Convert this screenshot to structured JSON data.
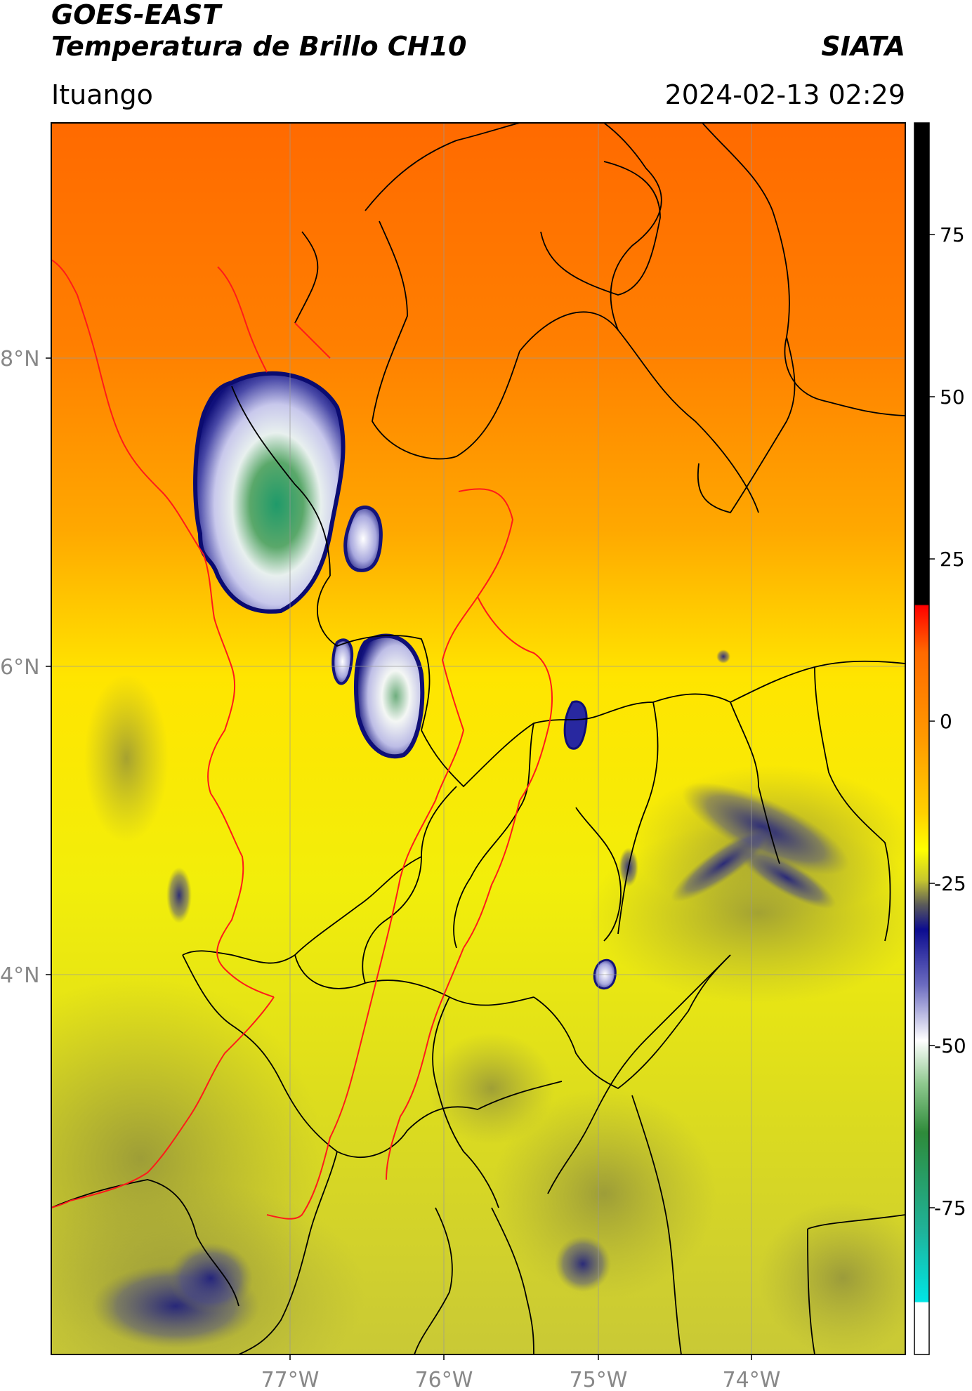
{
  "header": {
    "title_line1": "GOES-EAST",
    "title_line2": "Temperatura de Brillo CH10",
    "brand": "SIATA",
    "location": "Ituango",
    "datetime": "2024-02-13 02:29"
  },
  "map": {
    "lon_labels": [
      "77°W",
      "76°W",
      "75°W",
      "74°W"
    ],
    "lat_labels": [
      "8°N",
      "6°N",
      "4°N"
    ]
  },
  "colorbar": {
    "tick_labels": [
      "75",
      "50",
      "25",
      "0",
      "-25",
      "-50",
      "-75"
    ],
    "colors": {
      "hot": "#000000",
      "red": "#ff0000",
      "orange": "#ff8c00",
      "yellow": "#ffff00",
      "olive": "#9a9a3a",
      "navy": "#101080",
      "white": "#ffffff",
      "green": "#2e8b57",
      "cyan": "#00e5e5"
    }
  }
}
